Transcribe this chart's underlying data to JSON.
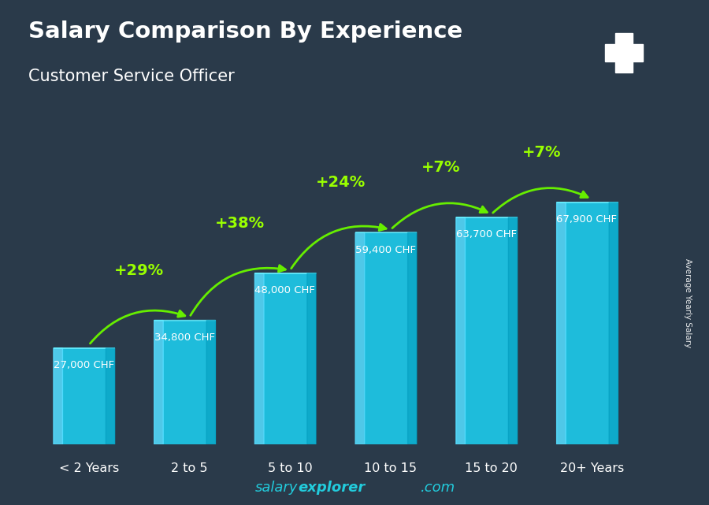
{
  "title": "Salary Comparison By Experience",
  "subtitle": "Customer Service Officer",
  "ylabel": "Average Yearly Salary",
  "categories": [
    "< 2 Years",
    "2 to 5",
    "5 to 10",
    "10 to 15",
    "15 to 20",
    "20+ Years"
  ],
  "values": [
    27000,
    34800,
    48000,
    59400,
    63700,
    67900
  ],
  "val_labels": [
    "27,000 CHF",
    "34,800 CHF",
    "48,000 CHF",
    "59,400 CHF",
    "63,700 CHF",
    "67,900 CHF"
  ],
  "pct_changes": [
    "+29%",
    "+38%",
    "+24%",
    "+7%",
    "+7%"
  ],
  "bar_face_color": "#1ec8e8",
  "bar_left_color": "#55ddff",
  "bar_right_color": "#0099bb",
  "bar_top_color": "#66eeff",
  "bg_color": "#2a3a4a",
  "title_color": "#ffffff",
  "subtitle_color": "#ffffff",
  "val_label_color": "#ffffff",
  "pct_color": "#99ff00",
  "arrow_color": "#66ee00",
  "footer_color": "#22ccdd",
  "swiss_flag_red": "#cc0000",
  "ylim_max": 85000,
  "bar_width": 0.52,
  "bar_depth": 0.09
}
